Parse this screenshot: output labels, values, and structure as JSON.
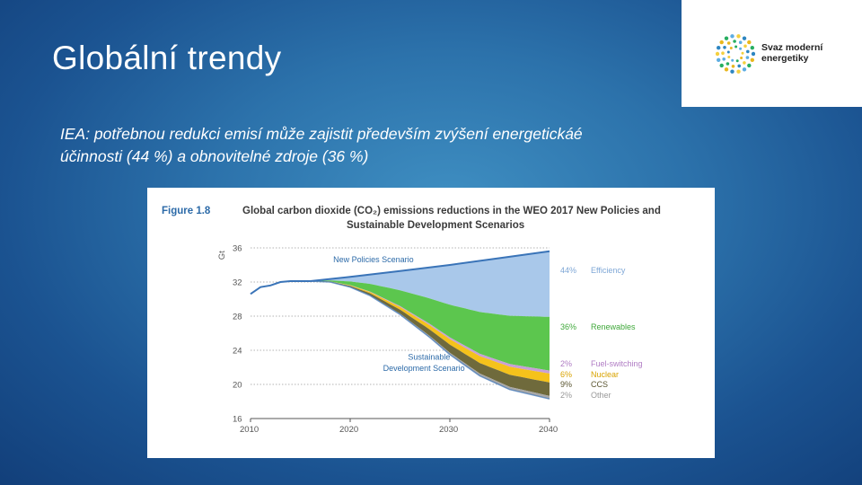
{
  "slide": {
    "title": "Globální trendy",
    "subtitle_line1": "IEA: potřebnou redukci emisí může zajistit především zvýšení energetickáé",
    "subtitle_line2": "účinnosti (44 %) a obnovitelné zdroje (36 %)"
  },
  "logo": {
    "line1": "Svaz moderní",
    "line2": "energetiky"
  },
  "colors": {
    "efficiency": "#a9c8ea",
    "renewables": "#5cc64e",
    "fuel_switching": "#c8a0d6",
    "nuclear": "#f5c21b",
    "ccs": "#6f6a3c",
    "other": "#a8a8a8",
    "line": "#3a74b8",
    "accent_label": "#2c6aa8"
  },
  "chart_data": {
    "type": "area",
    "figure_label": "Figure 1.8",
    "title_line1": "Global carbon dioxide (CO₂) emissions reductions in the WEO 2017 New Policies and",
    "title_line2": "Sustainable Development Scenarios",
    "ylabel": "Gt",
    "ylim": [
      16,
      36
    ],
    "yticks": [
      16,
      20,
      24,
      28,
      32,
      36
    ],
    "xlim": [
      2010,
      2040
    ],
    "xticks": [
      2010,
      2020,
      2030,
      2040
    ],
    "history": {
      "x": [
        2010,
        2011,
        2012,
        2013,
        2014,
        2015,
        2016
      ],
      "y": [
        30.6,
        31.4,
        31.6,
        32.0,
        32.1,
        32.1,
        32.1
      ]
    },
    "new_policies": {
      "name": "New Policies Scenario",
      "x": [
        2016,
        2020,
        2025,
        2030,
        2035,
        2040
      ],
      "y": [
        32.1,
        32.6,
        33.3,
        34.0,
        34.8,
        35.6
      ]
    },
    "sustainable": {
      "name_line1": "Sustainable",
      "name_line2": "Development Scenario",
      "x": [
        2016,
        2018,
        2020,
        2022,
        2025,
        2028,
        2030,
        2033,
        2036,
        2040
      ],
      "y": [
        32.1,
        32.0,
        31.4,
        30.4,
        28.2,
        25.5,
        23.5,
        21.0,
        19.4,
        18.3
      ]
    },
    "wedges": [
      {
        "key": "efficiency",
        "name": "Efficiency",
        "share": 0.44,
        "label": "44%"
      },
      {
        "key": "renewables",
        "name": "Renewables",
        "share": 0.36,
        "label": "36%"
      },
      {
        "key": "fuel_switching",
        "name": "Fuel-switching",
        "share": 0.02,
        "label": "2%"
      },
      {
        "key": "nuclear",
        "name": "Nuclear",
        "share": 0.06,
        "label": "6%"
      },
      {
        "key": "ccs",
        "name": "CCS",
        "share": 0.09,
        "label": "9%"
      },
      {
        "key": "other",
        "name": "Other",
        "share": 0.02,
        "label": "2%"
      }
    ]
  }
}
